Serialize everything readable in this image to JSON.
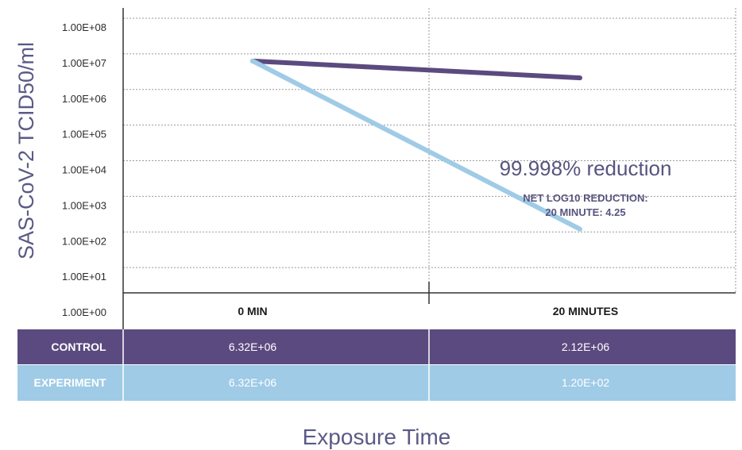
{
  "chart_data": {
    "type": "line",
    "title": "",
    "ylabel": "SAS-CoV-2 TCID50/ml",
    "xlabel": "Exposure Time",
    "y_scale": "log",
    "ylim": [
      1,
      100000000
    ],
    "y_ticks": [
      {
        "value": 1,
        "label": "1.00E+00"
      },
      {
        "value": 10,
        "label": "1.00E+01"
      },
      {
        "value": 100,
        "label": "1.00E+02"
      },
      {
        "value": 1000,
        "label": "1.00E+03"
      },
      {
        "value": 10000,
        "label": "1.00E+04"
      },
      {
        "value": 100000,
        "label": "1.00E+05"
      },
      {
        "value": 1000000,
        "label": "1.00E+06"
      },
      {
        "value": 10000000,
        "label": "1.00E+07"
      },
      {
        "value": 100000000,
        "label": "1.00E+08"
      }
    ],
    "categories": [
      "0 MIN",
      "20 MINUTES"
    ],
    "grid": true,
    "series": [
      {
        "name": "CONTROL",
        "values": [
          6320000,
          2120000
        ],
        "labels": [
          "6.32E+06",
          "2.12E+06"
        ],
        "color": "#5b4a7f"
      },
      {
        "name": "EXPERIMENT",
        "values": [
          6320000,
          120
        ],
        "labels": [
          "6.32E+06",
          "1.20E+02"
        ],
        "color": "#9fcbe6"
      }
    ],
    "annotations": [
      {
        "text": "99.998% reduction"
      },
      {
        "text": "NET LOG10 REDUCTION:"
      },
      {
        "text": "20 MINUTE: 4.25"
      }
    ]
  }
}
